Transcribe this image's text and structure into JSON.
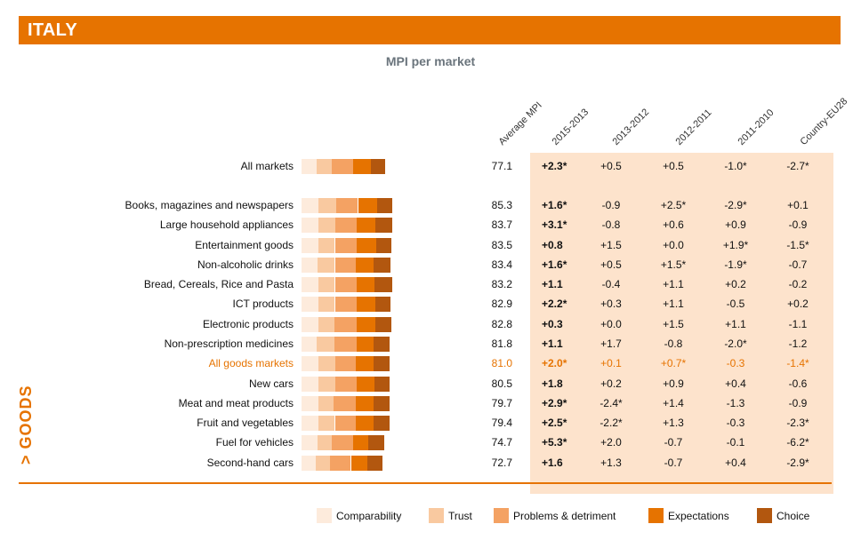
{
  "header": {
    "title": "ITALY"
  },
  "chart_data": {
    "type": "bar",
    "stacked": true,
    "orientation": "horizontal",
    "title": "MPI per market",
    "section_label": "> GOODS",
    "columns": [
      "Average MPI",
      "2015-2013",
      "2013-2012",
      "2012-2011",
      "2011-2010",
      "Country-EU28"
    ],
    "components": [
      {
        "name": "Comparability",
        "color": "#fdebdc"
      },
      {
        "name": "Trust",
        "color": "#f9c9a0"
      },
      {
        "name": "Problems & detriment",
        "color": "#f4a263"
      },
      {
        "name": "Expectations",
        "color": "#e67300"
      },
      {
        "name": "Choice",
        "color": "#b2570f"
      }
    ],
    "rows": [
      {
        "label": "All markets",
        "avg": "77.1",
        "d1": "+2.3*",
        "d2": "+0.5",
        "d3": "+0.5",
        "d4": "-1.0*",
        "d5": "-2.7*",
        "avg_value": 77.1,
        "segments": [
          15.2,
          15.6,
          21.3,
          17.9,
          14.5
        ]
      },
      {
        "label": "Books, magazines and newspapers",
        "avg": "85.3",
        "d1": "+1.6*",
        "d2": "-0.9",
        "d3": "+2.5*",
        "d4": "-2.9*",
        "d5": "+0.1",
        "avg_value": 85.3,
        "segments": [
          16.8,
          17.8,
          22.3,
          19.1,
          15.7
        ]
      },
      {
        "label": "Large household appliances",
        "avg": "83.7",
        "d1": "+3.1*",
        "d2": "-0.8",
        "d3": "+0.6",
        "d4": "+0.9",
        "d5": "-0.9",
        "avg_value": 83.7,
        "segments": [
          17.3,
          16.8,
          21.3,
          19.3,
          16.8
        ]
      },
      {
        "label": "Entertainment goods",
        "avg": "83.5",
        "d1": "+0.8",
        "d2": "+1.5",
        "d3": "+0.0",
        "d4": "+1.9*",
        "d5": "-1.5*",
        "avg_value": 83.5,
        "segments": [
          17.3,
          16.3,
          21.8,
          19.8,
          15.8
        ]
      },
      {
        "label": "Non-alcoholic drinks",
        "avg": "83.4",
        "d1": "+1.6*",
        "d2": "+0.5",
        "d3": "+1.5*",
        "d4": "-1.9*",
        "d5": "-0.7",
        "avg_value": 83.4,
        "segments": [
          16.3,
          17.3,
          20.8,
          18.3,
          17.3
        ]
      },
      {
        "label": "Bread, Cereals, Rice and Pasta",
        "avg": "83.2",
        "d1": "+1.1",
        "d2": "-0.4",
        "d3": "+1.1",
        "d4": "+0.2",
        "d5": "-0.2",
        "avg_value": 83.2,
        "segments": [
          17.3,
          16.3,
          21.8,
          18.3,
          17.3
        ]
      },
      {
        "label": "ICT products",
        "avg": "82.9",
        "d1": "+2.2*",
        "d2": "+0.3",
        "d3": "+1.1",
        "d4": "-0.5",
        "d5": "+0.2",
        "avg_value": 82.9,
        "segments": [
          17.3,
          16.3,
          21.8,
          18.8,
          15.8
        ]
      },
      {
        "label": "Electronic products",
        "avg": "82.8",
        "d1": "+0.3",
        "d2": "+0.0",
        "d3": "+1.5",
        "d4": "+1.1",
        "d5": "-1.1",
        "avg_value": 82.8,
        "segments": [
          17.3,
          15.8,
          22.3,
          18.8,
          16.3
        ]
      },
      {
        "label": "Non-prescription medicines",
        "avg": "81.8",
        "d1": "+1.1",
        "d2": "+1.7",
        "d3": "-0.8",
        "d4": "-2.0*",
        "d5": "-1.2",
        "avg_value": 81.8,
        "segments": [
          15.2,
          17.8,
          22.3,
          17.3,
          16.3
        ]
      },
      {
        "label": "All goods markets",
        "avg": "81.0",
        "d1": "+2.0*",
        "d2": "+0.1",
        "d3": "+0.7*",
        "d4": "-0.3",
        "d5": "-1.4*",
        "avg_value": 81.0,
        "segments": [
          16.8,
          17.3,
          20.8,
          17.8,
          16.3
        ],
        "highlight": true
      },
      {
        "label": "New cars",
        "avg": "80.5",
        "d1": "+1.8",
        "d2": "+0.2",
        "d3": "+0.9",
        "d4": "+0.4",
        "d5": "-0.6",
        "avg_value": 80.5,
        "segments": [
          17.3,
          16.8,
          21.8,
          17.3,
          15.2
        ]
      },
      {
        "label": "Meat and meat products",
        "avg": "79.7",
        "d1": "+2.9*",
        "d2": "-2.4*",
        "d3": "+1.4",
        "d4": "-1.3",
        "d5": "-0.9",
        "avg_value": 79.7,
        "segments": [
          16.8,
          15.8,
          21.8,
          18.3,
          15.8
        ]
      },
      {
        "label": "Fruit and vegetables",
        "avg": "79.4",
        "d1": "+2.5*",
        "d2": "-2.2*",
        "d3": "+1.3",
        "d4": "-0.3",
        "d5": "-2.3*",
        "avg_value": 79.4,
        "segments": [
          17.3,
          16.3,
          20.8,
          17.8,
          16.8
        ]
      },
      {
        "label": "Fuel for vehicles",
        "avg": "74.7",
        "d1": "+5.3*",
        "d2": "+2.0",
        "d3": "-0.7",
        "d4": "-0.1",
        "d5": "-6.2*",
        "avg_value": 74.7,
        "segments": [
          16.3,
          14.2,
          21.8,
          15.2,
          15.8
        ]
      },
      {
        "label": "Second-hand cars",
        "avg": "72.7",
        "d1": "+1.6",
        "d2": "+1.3",
        "d3": "-0.7",
        "d4": "+0.4",
        "d5": "-2.9*",
        "avg_value": 72.7,
        "segments": [
          14.7,
          13.7,
          21.3,
          16.8,
          14.7
        ]
      }
    ]
  }
}
